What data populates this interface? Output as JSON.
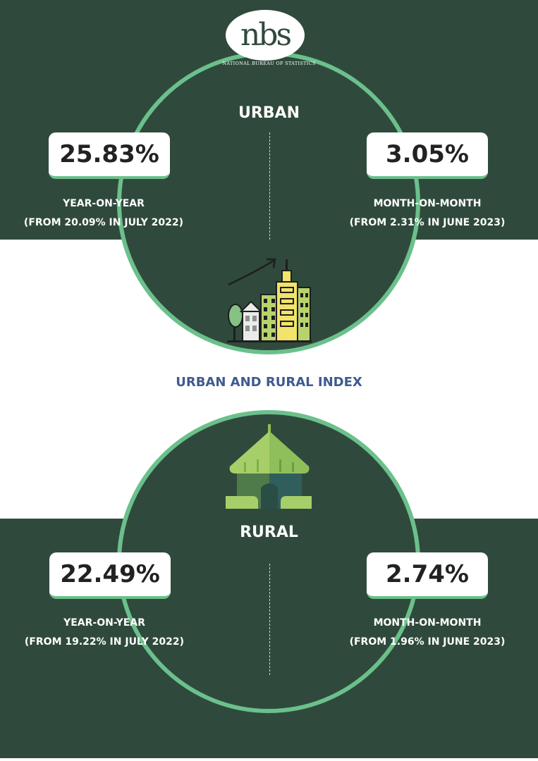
{
  "colors": {
    "dark": "#2f4a3c",
    "accent": "#6bc08b",
    "blue": "#3f5b8e"
  },
  "logo": {
    "text": "nbs",
    "caption": "NATIONAL BUREAU OF STATISTICS"
  },
  "icons": {
    "urban": "city-buildings-growth-icon",
    "rural": "rural-hut-icon"
  },
  "urban": {
    "title": "URBAN",
    "yoy": {
      "value": "25.83%",
      "label": "YEAR-ON-YEAR",
      "note": "(FROM 20.09% IN JULY 2022)"
    },
    "mom": {
      "value": "3.05%",
      "label": "MONTH-ON-MONTH",
      "note": "(FROM 2.31% IN JUNE 2023)"
    }
  },
  "middle_title": "URBAN AND RURAL INDEX",
  "rural": {
    "title": "RURAL",
    "yoy": {
      "value": "22.49%",
      "label": "YEAR-ON-YEAR",
      "note": "(FROM 19.22% IN JULY 2022)"
    },
    "mom": {
      "value": "2.74%",
      "label": "MONTH-ON-MONTH",
      "note": "(FROM 1.96% IN JUNE 2023)"
    }
  }
}
